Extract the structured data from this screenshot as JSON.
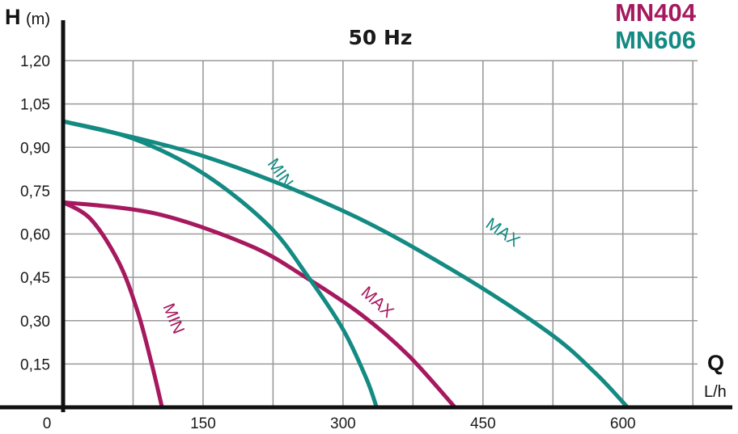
{
  "chart_data": {
    "type": "line",
    "title": "50 Hz",
    "legend": [
      "MN404",
      "MN606"
    ],
    "colors": {
      "MN404": "#a6195f",
      "MN606": "#138a82",
      "grid": "#9a9a9a",
      "axis": "#111111"
    },
    "ylabel": "H",
    "yunit": "(m)",
    "xlabel": "Q",
    "xunit": "L/h",
    "xlim": [
      0,
      680
    ],
    "ylim": [
      0,
      1.2
    ],
    "xticks": [
      0,
      150,
      300,
      450,
      600
    ],
    "xtick_labels": [
      "0",
      "150",
      "300",
      "450",
      "600"
    ],
    "yticks": [
      0.15,
      0.3,
      0.45,
      0.6,
      0.75,
      0.9,
      1.05,
      1.2
    ],
    "ytick_labels": [
      "0,15",
      "0,30",
      "0,45",
      "0,60",
      "0,75",
      "0,90",
      "1,05",
      "1,20"
    ],
    "grid": true,
    "series": [
      {
        "name": "MN404",
        "label": "MIN",
        "color": "#a6195f",
        "points": [
          [
            0,
            0.71
          ],
          [
            30,
            0.65
          ],
          [
            60,
            0.5
          ],
          [
            80,
            0.33
          ],
          [
            95,
            0.15
          ],
          [
            106,
            0.0
          ]
        ],
        "label_anchor": [
          113,
          0.3
        ],
        "label_angle": 68
      },
      {
        "name": "MN404",
        "label": "MAX",
        "color": "#a6195f",
        "points": [
          [
            0,
            0.71
          ],
          [
            100,
            0.67
          ],
          [
            200,
            0.56
          ],
          [
            260,
            0.45
          ],
          [
            320,
            0.32
          ],
          [
            370,
            0.18
          ],
          [
            420,
            0.0
          ]
        ],
        "label_anchor": [
          333,
          0.35
        ],
        "label_angle": 42
      },
      {
        "name": "MN606",
        "label": "MIN",
        "color": "#138a82",
        "points": [
          [
            0,
            0.99
          ],
          [
            75,
            0.93
          ],
          [
            150,
            0.81
          ],
          [
            220,
            0.63
          ],
          [
            263,
            0.45
          ],
          [
            300,
            0.27
          ],
          [
            325,
            0.1
          ],
          [
            336,
            0.0
          ]
        ],
        "label_anchor": [
          228,
          0.8
        ],
        "label_angle": 55
      },
      {
        "name": "MN606",
        "label": "MAX",
        "color": "#138a82",
        "points": [
          [
            0,
            0.99
          ],
          [
            150,
            0.87
          ],
          [
            300,
            0.68
          ],
          [
            420,
            0.47
          ],
          [
            520,
            0.26
          ],
          [
            570,
            0.12
          ],
          [
            605,
            0.0
          ]
        ],
        "label_anchor": [
          468,
          0.59
        ],
        "label_angle": 35
      }
    ]
  }
}
